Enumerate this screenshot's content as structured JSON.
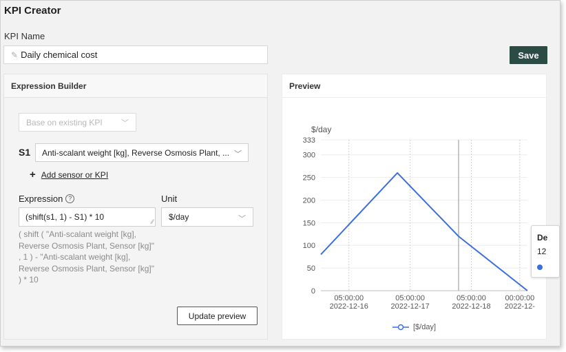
{
  "header": {
    "title": "KPI Creator"
  },
  "kpi_name": {
    "label": "KPI Name",
    "value": "Daily chemical cost"
  },
  "save_label": "Save",
  "expression_builder": {
    "title": "Expression Builder",
    "base_select_placeholder": "Base on existing KPI",
    "s1_label": "S1",
    "s1_value": "Anti-scalant weight [kg], Reverse Osmosis Plant, ...",
    "add_sensor_label": "Add sensor or KPI",
    "expression_label": "Expression",
    "expression_value": "(shift(s1, 1) - S1) * 10",
    "unit_label": "Unit",
    "unit_value": "$/day",
    "expression_lines": [
      "( shift ( \"Anti-scalant weight [kg],",
      "Reverse Osmosis Plant, Sensor [kg]\"",
      ", 1 ) - \"Anti-scalant weight [kg],",
      "Reverse Osmosis Plant, Sensor [kg]\"",
      ") * 10"
    ],
    "update_label": "Update preview"
  },
  "preview": {
    "title": "Preview",
    "tooltip": {
      "line1": "De",
      "line2": "12",
      "color": "#3b6fe0"
    }
  },
  "chart_data": {
    "type": "line",
    "ylabel": "$/day",
    "ylim": [
      0,
      333
    ],
    "yticks": [
      0,
      50,
      100,
      150,
      200,
      250,
      300,
      333
    ],
    "xlim": [
      "2022-12-15T18:00",
      "2022-12-19T03:00"
    ],
    "xticks": [
      {
        "x": "2022-12-16T05:00",
        "time": "05:00:00",
        "date": "2022-12-16"
      },
      {
        "x": "2022-12-17T05:00",
        "time": "05:00:00",
        "date": "2022-12-17"
      },
      {
        "x": "2022-12-18T05:00",
        "time": "05:00:00",
        "date": "2022-12-18"
      },
      {
        "x": "2022-12-19T00:00",
        "time": "00:00:00",
        "date": "2022-12-"
      }
    ],
    "hover_x": "2022-12-18T00:00",
    "series": [
      {
        "name": "[$/day]",
        "color": "#3b6fe0",
        "points": [
          {
            "x": "2022-12-15T18:00",
            "y": 80
          },
          {
            "x": "2022-12-17T00:00",
            "y": 260
          },
          {
            "x": "2022-12-18T00:00",
            "y": 120
          },
          {
            "x": "2022-12-19T03:00",
            "y": 0
          }
        ]
      }
    ],
    "legend": "bottom",
    "grid": true
  }
}
